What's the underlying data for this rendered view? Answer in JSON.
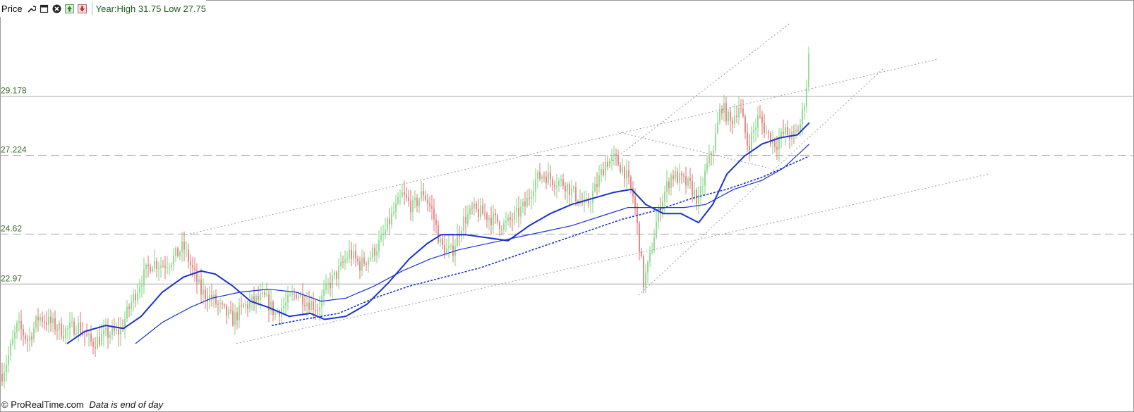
{
  "header": {
    "title": "Price",
    "info": "Year:High 31.75 Low 27.75",
    "icons": [
      "wrench-icon",
      "window-icon",
      "close-icon",
      "scroll-up-icon",
      "scroll-down-icon"
    ]
  },
  "footer": {
    "copyright": "© ProRealTime.com",
    "note": "Data is end of day"
  },
  "colors": {
    "up": "#7cd47c",
    "down": "#e07070",
    "ma": "#1a33cc",
    "trend": "#9a9a9a",
    "level_text": "#3a6e2e"
  },
  "chart_data": {
    "type": "candlestick",
    "title": "",
    "xlabel": "",
    "ylabel": "",
    "ylim": [
      19.6,
      31.8
    ],
    "grid": false,
    "level_labels": [
      "29.178",
      "27.224",
      "24.62",
      "22.97"
    ],
    "horizontal_levels": [
      {
        "value": 29.178,
        "style": "solid"
      },
      {
        "value": 27.224,
        "style": "dashed"
      },
      {
        "value": 24.62,
        "style": "dashed"
      },
      {
        "value": 22.97,
        "style": "solid"
      }
    ],
    "price_path": [
      [
        0,
        19.8
      ],
      [
        12,
        20.6
      ],
      [
        25,
        21.6
      ],
      [
        40,
        21.1
      ],
      [
        55,
        21.9
      ],
      [
        70,
        21.7
      ],
      [
        90,
        21.4
      ],
      [
        110,
        21.6
      ],
      [
        130,
        21.0
      ],
      [
        150,
        21.3
      ],
      [
        170,
        21.4
      ],
      [
        185,
        22.3
      ],
      [
        200,
        23.1
      ],
      [
        215,
        23.7
      ],
      [
        230,
        23.6
      ],
      [
        245,
        23.8
      ],
      [
        260,
        24.2
      ],
      [
        270,
        23.6
      ],
      [
        285,
        22.7
      ],
      [
        300,
        22.5
      ],
      [
        315,
        22.1
      ],
      [
        330,
        21.8
      ],
      [
        345,
        22.2
      ],
      [
        360,
        22.4
      ],
      [
        375,
        22.5
      ],
      [
        390,
        22.0
      ],
      [
        405,
        22.3
      ],
      [
        420,
        22.7
      ],
      [
        435,
        22.4
      ],
      [
        450,
        22.2
      ],
      [
        465,
        22.9
      ],
      [
        480,
        23.4
      ],
      [
        495,
        24.0
      ],
      [
        510,
        23.6
      ],
      [
        525,
        23.9
      ],
      [
        540,
        24.4
      ],
      [
        555,
        25.2
      ],
      [
        570,
        25.9
      ],
      [
        585,
        25.5
      ],
      [
        600,
        26.0
      ],
      [
        612,
        25.4
      ],
      [
        625,
        24.2
      ],
      [
        640,
        24.0
      ],
      [
        655,
        25.0
      ],
      [
        670,
        25.4
      ],
      [
        685,
        25.3
      ],
      [
        700,
        25.1
      ],
      [
        715,
        24.9
      ],
      [
        730,
        25.2
      ],
      [
        745,
        25.6
      ],
      [
        758,
        26.4
      ],
      [
        770,
        26.6
      ],
      [
        785,
        26.4
      ],
      [
        800,
        26.3
      ],
      [
        815,
        25.9
      ],
      [
        830,
        25.5
      ],
      [
        845,
        26.2
      ],
      [
        858,
        27.0
      ],
      [
        872,
        27.1
      ],
      [
        885,
        26.7
      ],
      [
        898,
        25.8
      ],
      [
        905,
        24.5
      ],
      [
        912,
        23.0
      ],
      [
        920,
        23.7
      ],
      [
        930,
        25.0
      ],
      [
        940,
        25.9
      ],
      [
        952,
        26.6
      ],
      [
        965,
        26.4
      ],
      [
        978,
        26.2
      ],
      [
        990,
        25.7
      ],
      [
        1000,
        26.7
      ],
      [
        1012,
        27.6
      ],
      [
        1022,
        28.9
      ],
      [
        1035,
        28.3
      ],
      [
        1048,
        28.9
      ],
      [
        1060,
        27.5
      ],
      [
        1075,
        28.5
      ],
      [
        1088,
        27.9
      ],
      [
        1100,
        27.6
      ],
      [
        1112,
        28.0
      ],
      [
        1124,
        27.8
      ],
      [
        1135,
        28.3
      ],
      [
        1142,
        29.3
      ],
      [
        1147,
        30.8
      ],
      [
        1150,
        31.1
      ]
    ],
    "series": [
      {
        "name": "",
        "style": "solid-thick",
        "points": [
          [
            95,
            21.0
          ],
          [
            120,
            21.4
          ],
          [
            150,
            21.6
          ],
          [
            175,
            21.5
          ],
          [
            200,
            21.9
          ],
          [
            230,
            22.7
          ],
          [
            260,
            23.2
          ],
          [
            285,
            23.4
          ],
          [
            305,
            23.3
          ],
          [
            330,
            22.9
          ],
          [
            355,
            22.4
          ],
          [
            380,
            22.2
          ],
          [
            410,
            21.9
          ],
          [
            440,
            22.0
          ],
          [
            460,
            21.8
          ],
          [
            490,
            21.9
          ],
          [
            520,
            22.3
          ],
          [
            550,
            23.0
          ],
          [
            580,
            23.8
          ],
          [
            605,
            24.3
          ],
          [
            625,
            24.6
          ],
          [
            660,
            24.6
          ],
          [
            690,
            24.5
          ],
          [
            720,
            24.4
          ],
          [
            750,
            24.9
          ],
          [
            780,
            25.3
          ],
          [
            810,
            25.6
          ],
          [
            840,
            25.8
          ],
          [
            870,
            26.0
          ],
          [
            895,
            26.1
          ],
          [
            915,
            25.6
          ],
          [
            940,
            25.3
          ],
          [
            965,
            25.3
          ],
          [
            990,
            25.0
          ],
          [
            1010,
            25.6
          ],
          [
            1030,
            26.6
          ],
          [
            1055,
            27.2
          ],
          [
            1080,
            27.6
          ],
          [
            1105,
            27.8
          ],
          [
            1130,
            27.9
          ],
          [
            1147,
            28.3
          ]
        ]
      },
      {
        "name": "",
        "style": "solid-thin",
        "points": [
          [
            192,
            21.0
          ],
          [
            230,
            21.7
          ],
          [
            270,
            22.2
          ],
          [
            300,
            22.5
          ],
          [
            340,
            22.7
          ],
          [
            380,
            22.8
          ],
          [
            420,
            22.7
          ],
          [
            455,
            22.4
          ],
          [
            490,
            22.5
          ],
          [
            530,
            22.9
          ],
          [
            570,
            23.4
          ],
          [
            610,
            23.8
          ],
          [
            650,
            24.1
          ],
          [
            690,
            24.3
          ],
          [
            730,
            24.5
          ],
          [
            770,
            24.7
          ],
          [
            810,
            24.9
          ],
          [
            850,
            25.2
          ],
          [
            890,
            25.5
          ],
          [
            930,
            25.5
          ],
          [
            970,
            25.5
          ],
          [
            1000,
            25.6
          ],
          [
            1040,
            26.1
          ],
          [
            1080,
            26.4
          ],
          [
            1110,
            26.8
          ],
          [
            1147,
            27.6
          ]
        ]
      },
      {
        "name": "",
        "style": "dashed",
        "points": [
          [
            385,
            21.6
          ],
          [
            430,
            21.8
          ],
          [
            480,
            22.0
          ],
          [
            530,
            22.5
          ],
          [
            580,
            22.9
          ],
          [
            630,
            23.2
          ],
          [
            680,
            23.5
          ],
          [
            730,
            23.9
          ],
          [
            780,
            24.3
          ],
          [
            830,
            24.7
          ],
          [
            880,
            25.1
          ],
          [
            930,
            25.4
          ],
          [
            980,
            25.8
          ],
          [
            1030,
            26.1
          ],
          [
            1080,
            26.5
          ],
          [
            1147,
            27.2
          ]
        ]
      }
    ],
    "trendlines": [
      {
        "from": [
          264,
          24.6
        ],
        "to": [
          1328,
          30.4
        ]
      },
      {
        "from": [
          335,
          21.0
        ],
        "to": [
          1400,
          26.6
        ]
      },
      {
        "from": [
          905,
          22.6
        ],
        "to": [
          1252,
          30.1
        ]
      },
      {
        "from": [
          860,
          26.9
        ],
        "to": [
          1120,
          31.6
        ]
      },
      {
        "from": [
          875,
          28.0
        ],
        "to": [
          1090,
          26.8
        ]
      }
    ]
  }
}
